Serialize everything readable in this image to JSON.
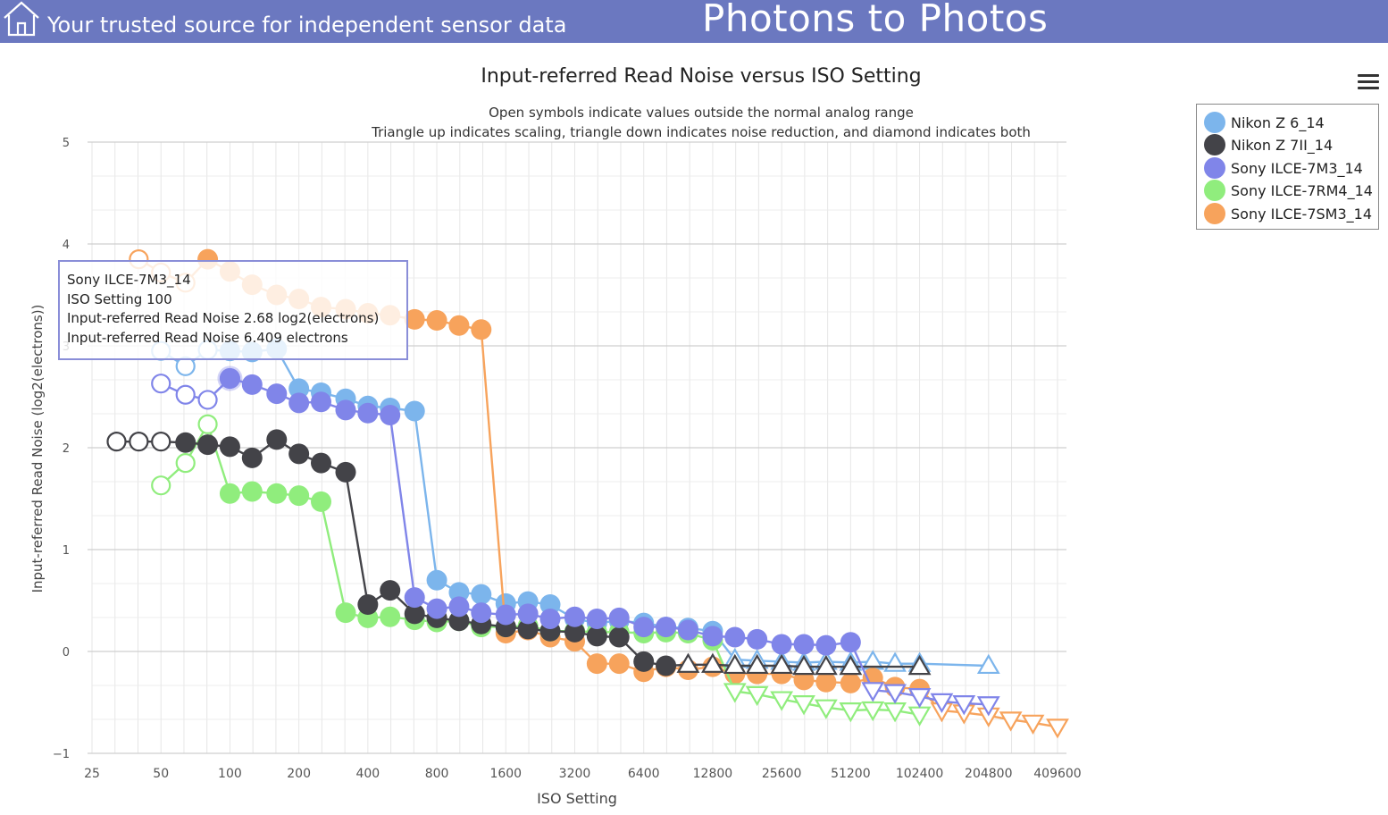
{
  "header": {
    "tagline": "Your trusted source for independent sensor data",
    "site_title": "Photons to Photos",
    "background_color": "#6b78c0",
    "home_icon": "home-icon"
  },
  "menu": {
    "icon": "hamburger-menu-icon"
  },
  "chart_data": {
    "type": "line",
    "title": "Input-referred Read Noise versus ISO Setting",
    "subtitle_lines": [
      "Open symbols indicate values outside the normal analog range",
      "Triangle up indicates scaling, triangle down indicates noise reduction, and diamond indicates both"
    ],
    "xlabel": "ISO Setting",
    "ylabel": "Input-referred Read Noise (log2(electrons))",
    "x_scale": "log2",
    "xlim": [
      25,
      409600
    ],
    "ylim": [
      -1,
      5
    ],
    "x_ticks": [
      "25",
      "50",
      "100",
      "200",
      "400",
      "800",
      "1600",
      "3200",
      "6400",
      "12800",
      "25600",
      "51200",
      "102400",
      "204800",
      "409600"
    ],
    "y_ticks": [
      "5",
      "4",
      "3",
      "2",
      "1",
      "0",
      "−1"
    ],
    "legend_position": "top-right",
    "series": [
      {
        "name": "Nikon Z 6_14",
        "color": "#7cb5ec",
        "points": [
          {
            "x": 50,
            "y": 2.95,
            "m": "open"
          },
          {
            "x": 64,
            "y": 2.8,
            "m": "open"
          },
          {
            "x": 80,
            "y": 2.96,
            "m": "open"
          },
          {
            "x": 100,
            "y": 2.95,
            "m": "filled"
          },
          {
            "x": 125,
            "y": 2.94,
            "m": "filled"
          },
          {
            "x": 160,
            "y": 2.97,
            "m": "filled"
          },
          {
            "x": 200,
            "y": 2.58,
            "m": "filled"
          },
          {
            "x": 250,
            "y": 2.54,
            "m": "filled"
          },
          {
            "x": 320,
            "y": 2.48,
            "m": "filled"
          },
          {
            "x": 400,
            "y": 2.41,
            "m": "filled"
          },
          {
            "x": 500,
            "y": 2.39,
            "m": "filled"
          },
          {
            "x": 640,
            "y": 2.36,
            "m": "filled"
          },
          {
            "x": 800,
            "y": 0.7,
            "m": "filled"
          },
          {
            "x": 1000,
            "y": 0.58,
            "m": "filled"
          },
          {
            "x": 1250,
            "y": 0.56,
            "m": "filled"
          },
          {
            "x": 1600,
            "y": 0.47,
            "m": "filled"
          },
          {
            "x": 2000,
            "y": 0.49,
            "m": "filled"
          },
          {
            "x": 2500,
            "y": 0.46,
            "m": "filled"
          },
          {
            "x": 3200,
            "y": 0.32,
            "m": "filled"
          },
          {
            "x": 4000,
            "y": 0.28,
            "m": "filled"
          },
          {
            "x": 5000,
            "y": 0.3,
            "m": "filled"
          },
          {
            "x": 6400,
            "y": 0.28,
            "m": "filled"
          },
          {
            "x": 8000,
            "y": 0.24,
            "m": "filled"
          },
          {
            "x": 10000,
            "y": 0.23,
            "m": "filled"
          },
          {
            "x": 12800,
            "y": 0.2,
            "m": "filled"
          },
          {
            "x": 16000,
            "y": -0.08,
            "m": "tri-up"
          },
          {
            "x": 20000,
            "y": -0.09,
            "m": "tri-up"
          },
          {
            "x": 25600,
            "y": -0.1,
            "m": "tri-up"
          },
          {
            "x": 32000,
            "y": -0.11,
            "m": "tri-up"
          },
          {
            "x": 40000,
            "y": -0.1,
            "m": "tri-up"
          },
          {
            "x": 51200,
            "y": -0.11,
            "m": "tri-up"
          },
          {
            "x": 64000,
            "y": -0.1,
            "m": "tri-up"
          },
          {
            "x": 80000,
            "y": -0.12,
            "m": "tri-up"
          },
          {
            "x": 102400,
            "y": -0.12,
            "m": "tri-up"
          },
          {
            "x": 204800,
            "y": -0.14,
            "m": "tri-up"
          }
        ]
      },
      {
        "name": "Nikon Z 7II_14",
        "color": "#434348",
        "points": [
          {
            "x": 32,
            "y": 2.06,
            "m": "open"
          },
          {
            "x": 40,
            "y": 2.06,
            "m": "open"
          },
          {
            "x": 50,
            "y": 2.06,
            "m": "open"
          },
          {
            "x": 64,
            "y": 2.05,
            "m": "filled"
          },
          {
            "x": 80,
            "y": 2.03,
            "m": "filled"
          },
          {
            "x": 100,
            "y": 2.01,
            "m": "filled"
          },
          {
            "x": 125,
            "y": 1.9,
            "m": "filled"
          },
          {
            "x": 160,
            "y": 2.08,
            "m": "filled"
          },
          {
            "x": 200,
            "y": 1.94,
            "m": "filled"
          },
          {
            "x": 250,
            "y": 1.85,
            "m": "filled"
          },
          {
            "x": 320,
            "y": 1.76,
            "m": "filled"
          },
          {
            "x": 400,
            "y": 0.46,
            "m": "filled"
          },
          {
            "x": 500,
            "y": 0.6,
            "m": "filled"
          },
          {
            "x": 640,
            "y": 0.37,
            "m": "filled"
          },
          {
            "x": 800,
            "y": 0.33,
            "m": "filled"
          },
          {
            "x": 1000,
            "y": 0.3,
            "m": "filled"
          },
          {
            "x": 1250,
            "y": 0.27,
            "m": "filled"
          },
          {
            "x": 1600,
            "y": 0.24,
            "m": "filled"
          },
          {
            "x": 2000,
            "y": 0.22,
            "m": "filled"
          },
          {
            "x": 2500,
            "y": 0.2,
            "m": "filled"
          },
          {
            "x": 3200,
            "y": 0.19,
            "m": "filled"
          },
          {
            "x": 4000,
            "y": 0.15,
            "m": "filled"
          },
          {
            "x": 5000,
            "y": 0.14,
            "m": "filled"
          },
          {
            "x": 6400,
            "y": -0.1,
            "m": "filled"
          },
          {
            "x": 8000,
            "y": -0.14,
            "m": "filled"
          },
          {
            "x": 10000,
            "y": -0.13,
            "m": "tri-up"
          },
          {
            "x": 12800,
            "y": -0.13,
            "m": "tri-up"
          },
          {
            "x": 16000,
            "y": -0.14,
            "m": "tri-up"
          },
          {
            "x": 20000,
            "y": -0.14,
            "m": "tri-up"
          },
          {
            "x": 25600,
            "y": -0.14,
            "m": "tri-up"
          },
          {
            "x": 32000,
            "y": -0.15,
            "m": "tri-up"
          },
          {
            "x": 40000,
            "y": -0.15,
            "m": "tri-up"
          },
          {
            "x": 51200,
            "y": -0.15,
            "m": "tri-up"
          },
          {
            "x": 102400,
            "y": -0.15,
            "m": "tri-up"
          }
        ]
      },
      {
        "name": "Sony ILCE-7M3_14",
        "color": "#8085e9",
        "points": [
          {
            "x": 50,
            "y": 2.63,
            "m": "open"
          },
          {
            "x": 64,
            "y": 2.52,
            "m": "open"
          },
          {
            "x": 80,
            "y": 2.47,
            "m": "open"
          },
          {
            "x": 100,
            "y": 2.68,
            "m": "filled"
          },
          {
            "x": 125,
            "y": 2.62,
            "m": "filled"
          },
          {
            "x": 160,
            "y": 2.53,
            "m": "filled"
          },
          {
            "x": 200,
            "y": 2.44,
            "m": "filled"
          },
          {
            "x": 250,
            "y": 2.45,
            "m": "filled"
          },
          {
            "x": 320,
            "y": 2.37,
            "m": "filled"
          },
          {
            "x": 400,
            "y": 2.34,
            "m": "filled"
          },
          {
            "x": 500,
            "y": 2.32,
            "m": "filled"
          },
          {
            "x": 640,
            "y": 0.53,
            "m": "filled"
          },
          {
            "x": 800,
            "y": 0.42,
            "m": "filled"
          },
          {
            "x": 1000,
            "y": 0.44,
            "m": "filled"
          },
          {
            "x": 1250,
            "y": 0.38,
            "m": "filled"
          },
          {
            "x": 1600,
            "y": 0.36,
            "m": "filled"
          },
          {
            "x": 2000,
            "y": 0.37,
            "m": "filled"
          },
          {
            "x": 2500,
            "y": 0.32,
            "m": "filled"
          },
          {
            "x": 3200,
            "y": 0.34,
            "m": "filled"
          },
          {
            "x": 4000,
            "y": 0.32,
            "m": "filled"
          },
          {
            "x": 5000,
            "y": 0.33,
            "m": "filled"
          },
          {
            "x": 6400,
            "y": 0.24,
            "m": "filled"
          },
          {
            "x": 8000,
            "y": 0.24,
            "m": "filled"
          },
          {
            "x": 10000,
            "y": 0.21,
            "m": "filled"
          },
          {
            "x": 12800,
            "y": 0.15,
            "m": "filled"
          },
          {
            "x": 16000,
            "y": 0.14,
            "m": "filled"
          },
          {
            "x": 20000,
            "y": 0.12,
            "m": "filled"
          },
          {
            "x": 25600,
            "y": 0.07,
            "m": "filled"
          },
          {
            "x": 32000,
            "y": 0.07,
            "m": "filled"
          },
          {
            "x": 40000,
            "y": 0.06,
            "m": "filled"
          },
          {
            "x": 51200,
            "y": 0.09,
            "m": "filled"
          },
          {
            "x": 64000,
            "y": -0.38,
            "m": "tri-down"
          },
          {
            "x": 80000,
            "y": -0.4,
            "m": "tri-down"
          },
          {
            "x": 102400,
            "y": -0.44,
            "m": "tri-down"
          },
          {
            "x": 128000,
            "y": -0.49,
            "m": "tri-down"
          },
          {
            "x": 160000,
            "y": -0.51,
            "m": "tri-down"
          },
          {
            "x": 204800,
            "y": -0.52,
            "m": "tri-down"
          }
        ]
      },
      {
        "name": "Sony ILCE-7RM4_14",
        "color": "#90ed7d",
        "points": [
          {
            "x": 50,
            "y": 1.63,
            "m": "open"
          },
          {
            "x": 64,
            "y": 1.85,
            "m": "open"
          },
          {
            "x": 80,
            "y": 2.23,
            "m": "open"
          },
          {
            "x": 100,
            "y": 1.55,
            "m": "filled"
          },
          {
            "x": 125,
            "y": 1.57,
            "m": "filled"
          },
          {
            "x": 160,
            "y": 1.55,
            "m": "filled"
          },
          {
            "x": 200,
            "y": 1.53,
            "m": "filled"
          },
          {
            "x": 250,
            "y": 1.47,
            "m": "filled"
          },
          {
            "x": 320,
            "y": 0.38,
            "m": "filled"
          },
          {
            "x": 400,
            "y": 0.33,
            "m": "filled"
          },
          {
            "x": 500,
            "y": 0.34,
            "m": "filled"
          },
          {
            "x": 640,
            "y": 0.31,
            "m": "filled"
          },
          {
            "x": 800,
            "y": 0.29,
            "m": "filled"
          },
          {
            "x": 1000,
            "y": 0.3,
            "m": "filled"
          },
          {
            "x": 1250,
            "y": 0.24,
            "m": "filled"
          },
          {
            "x": 1600,
            "y": 0.24,
            "m": "filled"
          },
          {
            "x": 2000,
            "y": 0.25,
            "m": "filled"
          },
          {
            "x": 2500,
            "y": 0.2,
            "m": "filled"
          },
          {
            "x": 3200,
            "y": 0.2,
            "m": "filled"
          },
          {
            "x": 4000,
            "y": 0.19,
            "m": "filled"
          },
          {
            "x": 5000,
            "y": 0.19,
            "m": "filled"
          },
          {
            "x": 6400,
            "y": 0.18,
            "m": "filled"
          },
          {
            "x": 8000,
            "y": 0.19,
            "m": "filled"
          },
          {
            "x": 10000,
            "y": 0.18,
            "m": "filled"
          },
          {
            "x": 12800,
            "y": 0.11,
            "m": "filled"
          },
          {
            "x": 16000,
            "y": -0.39,
            "m": "tri-down"
          },
          {
            "x": 20000,
            "y": -0.42,
            "m": "tri-down"
          },
          {
            "x": 25600,
            "y": -0.47,
            "m": "tri-down"
          },
          {
            "x": 32000,
            "y": -0.51,
            "m": "tri-down"
          },
          {
            "x": 40000,
            "y": -0.55,
            "m": "tri-down"
          },
          {
            "x": 51200,
            "y": -0.58,
            "m": "tri-down"
          },
          {
            "x": 64000,
            "y": -0.57,
            "m": "tri-down"
          },
          {
            "x": 80000,
            "y": -0.58,
            "m": "tri-down"
          },
          {
            "x": 102400,
            "y": -0.62,
            "m": "tri-down"
          }
        ]
      },
      {
        "name": "Sony ILCE-7SM3_14",
        "color": "#f7a35c",
        "points": [
          {
            "x": 40,
            "y": 3.85,
            "m": "open"
          },
          {
            "x": 50,
            "y": 3.72,
            "m": "open"
          },
          {
            "x": 64,
            "y": 3.62,
            "m": "open"
          },
          {
            "x": 80,
            "y": 3.85,
            "m": "filled"
          },
          {
            "x": 100,
            "y": 3.73,
            "m": "filled"
          },
          {
            "x": 125,
            "y": 3.6,
            "m": "filled"
          },
          {
            "x": 160,
            "y": 3.5,
            "m": "filled"
          },
          {
            "x": 200,
            "y": 3.46,
            "m": "filled"
          },
          {
            "x": 250,
            "y": 3.38,
            "m": "filled"
          },
          {
            "x": 320,
            "y": 3.36,
            "m": "filled"
          },
          {
            "x": 400,
            "y": 3.32,
            "m": "filled"
          },
          {
            "x": 500,
            "y": 3.3,
            "m": "filled"
          },
          {
            "x": 640,
            "y": 3.26,
            "m": "filled"
          },
          {
            "x": 800,
            "y": 3.25,
            "m": "filled"
          },
          {
            "x": 1000,
            "y": 3.2,
            "m": "filled"
          },
          {
            "x": 1250,
            "y": 3.16,
            "m": "filled"
          },
          {
            "x": 1600,
            "y": 0.18,
            "m": "filled"
          },
          {
            "x": 2000,
            "y": 0.21,
            "m": "filled"
          },
          {
            "x": 2500,
            "y": 0.14,
            "m": "filled"
          },
          {
            "x": 3200,
            "y": 0.1,
            "m": "filled"
          },
          {
            "x": 4000,
            "y": -0.12,
            "m": "filled"
          },
          {
            "x": 5000,
            "y": -0.12,
            "m": "filled"
          },
          {
            "x": 6400,
            "y": -0.2,
            "m": "filled"
          },
          {
            "x": 8000,
            "y": -0.15,
            "m": "filled"
          },
          {
            "x": 10000,
            "y": -0.18,
            "m": "filled"
          },
          {
            "x": 12800,
            "y": -0.15,
            "m": "filled"
          },
          {
            "x": 16000,
            "y": -0.22,
            "m": "filled"
          },
          {
            "x": 20000,
            "y": -0.22,
            "m": "filled"
          },
          {
            "x": 25600,
            "y": -0.22,
            "m": "filled"
          },
          {
            "x": 32000,
            "y": -0.28,
            "m": "filled"
          },
          {
            "x": 40000,
            "y": -0.3,
            "m": "filled"
          },
          {
            "x": 51200,
            "y": -0.31,
            "m": "filled"
          },
          {
            "x": 64000,
            "y": -0.26,
            "m": "filled"
          },
          {
            "x": 80000,
            "y": -0.35,
            "m": "filled"
          },
          {
            "x": 102400,
            "y": -0.37,
            "m": "filled"
          },
          {
            "x": 128000,
            "y": -0.58,
            "m": "tri-down"
          },
          {
            "x": 160000,
            "y": -0.6,
            "m": "tri-down"
          },
          {
            "x": 204800,
            "y": -0.63,
            "m": "tri-down"
          },
          {
            "x": 256000,
            "y": -0.67,
            "m": "tri-down"
          },
          {
            "x": 320000,
            "y": -0.7,
            "m": "tri-down"
          },
          {
            "x": 409600,
            "y": -0.74,
            "m": "tri-down"
          }
        ]
      }
    ],
    "tooltip": {
      "series_index": 2,
      "lines": [
        "Sony ILCE-7M3_14",
        "ISO Setting 100",
        "Input-referred Read Noise 2.68 log2(electrons)",
        "Input-referred Read Noise 6.409 electrons"
      ]
    }
  }
}
